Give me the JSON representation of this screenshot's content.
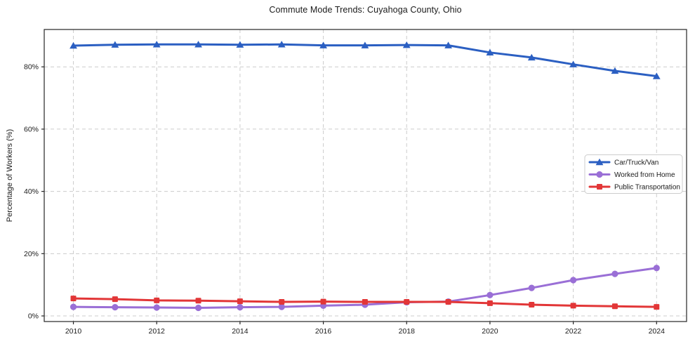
{
  "figure": {
    "title": "Commute Mode Trends: Cuyahoga County, Ohio",
    "background_color": "#ffffff"
  },
  "chart_data": {
    "type": "line",
    "title": "Commute Mode Trends: Cuyahoga County, Ohio",
    "xlabel": "",
    "ylabel": "Percentage of Workers (%)",
    "x": [
      2010,
      2011,
      2012,
      2013,
      2014,
      2015,
      2016,
      2017,
      2018,
      2019,
      2020,
      2021,
      2022,
      2023,
      2024
    ],
    "series": [
      {
        "name": "Car/Truck/Van",
        "marker": "triangle",
        "color": "#2b5fc2",
        "values": [
          86.8,
          87.1,
          87.2,
          87.2,
          87.1,
          87.2,
          86.9,
          86.9,
          87.0,
          86.9,
          84.6,
          83.0,
          80.8,
          78.7,
          77.0
        ]
      },
      {
        "name": "Worked from Home",
        "marker": "circle",
        "color": "#9a6fd6",
        "values": [
          2.9,
          2.8,
          2.7,
          2.6,
          2.8,
          2.9,
          3.3,
          3.6,
          4.4,
          4.6,
          6.7,
          9.0,
          11.5,
          13.5,
          15.4
        ]
      },
      {
        "name": "Public Transportation",
        "marker": "square",
        "color": "#e23637",
        "values": [
          5.6,
          5.4,
          5.0,
          4.9,
          4.7,
          4.5,
          4.6,
          4.5,
          4.5,
          4.5,
          4.1,
          3.6,
          3.3,
          3.1,
          2.9
        ]
      }
    ],
    "xticks": [
      2010,
      2012,
      2014,
      2016,
      2018,
      2020,
      2022,
      2024
    ],
    "xtick_labels": [
      "2010",
      "2012",
      "2014",
      "2016",
      "2018",
      "2020",
      "2022",
      "2024"
    ],
    "yticks": [
      0,
      20,
      40,
      60,
      80
    ],
    "ytick_labels": [
      "0%",
      "20%",
      "40%",
      "60%",
      "80%"
    ],
    "xlim": [
      2009.3,
      2024.72
    ],
    "ylim": [
      -1.8,
      92
    ],
    "grid": true,
    "legend": {
      "position": "center right",
      "entries": [
        "Car/Truck/Van",
        "Worked from Home",
        "Public Transportation"
      ]
    }
  },
  "style": {
    "grid_color": "#cccccc",
    "spine_color": "#262626",
    "tick_color": "#262626",
    "text_color": "#1a1a1a",
    "legend_bg": "#ffffff",
    "legend_border": "#cccccc"
  }
}
